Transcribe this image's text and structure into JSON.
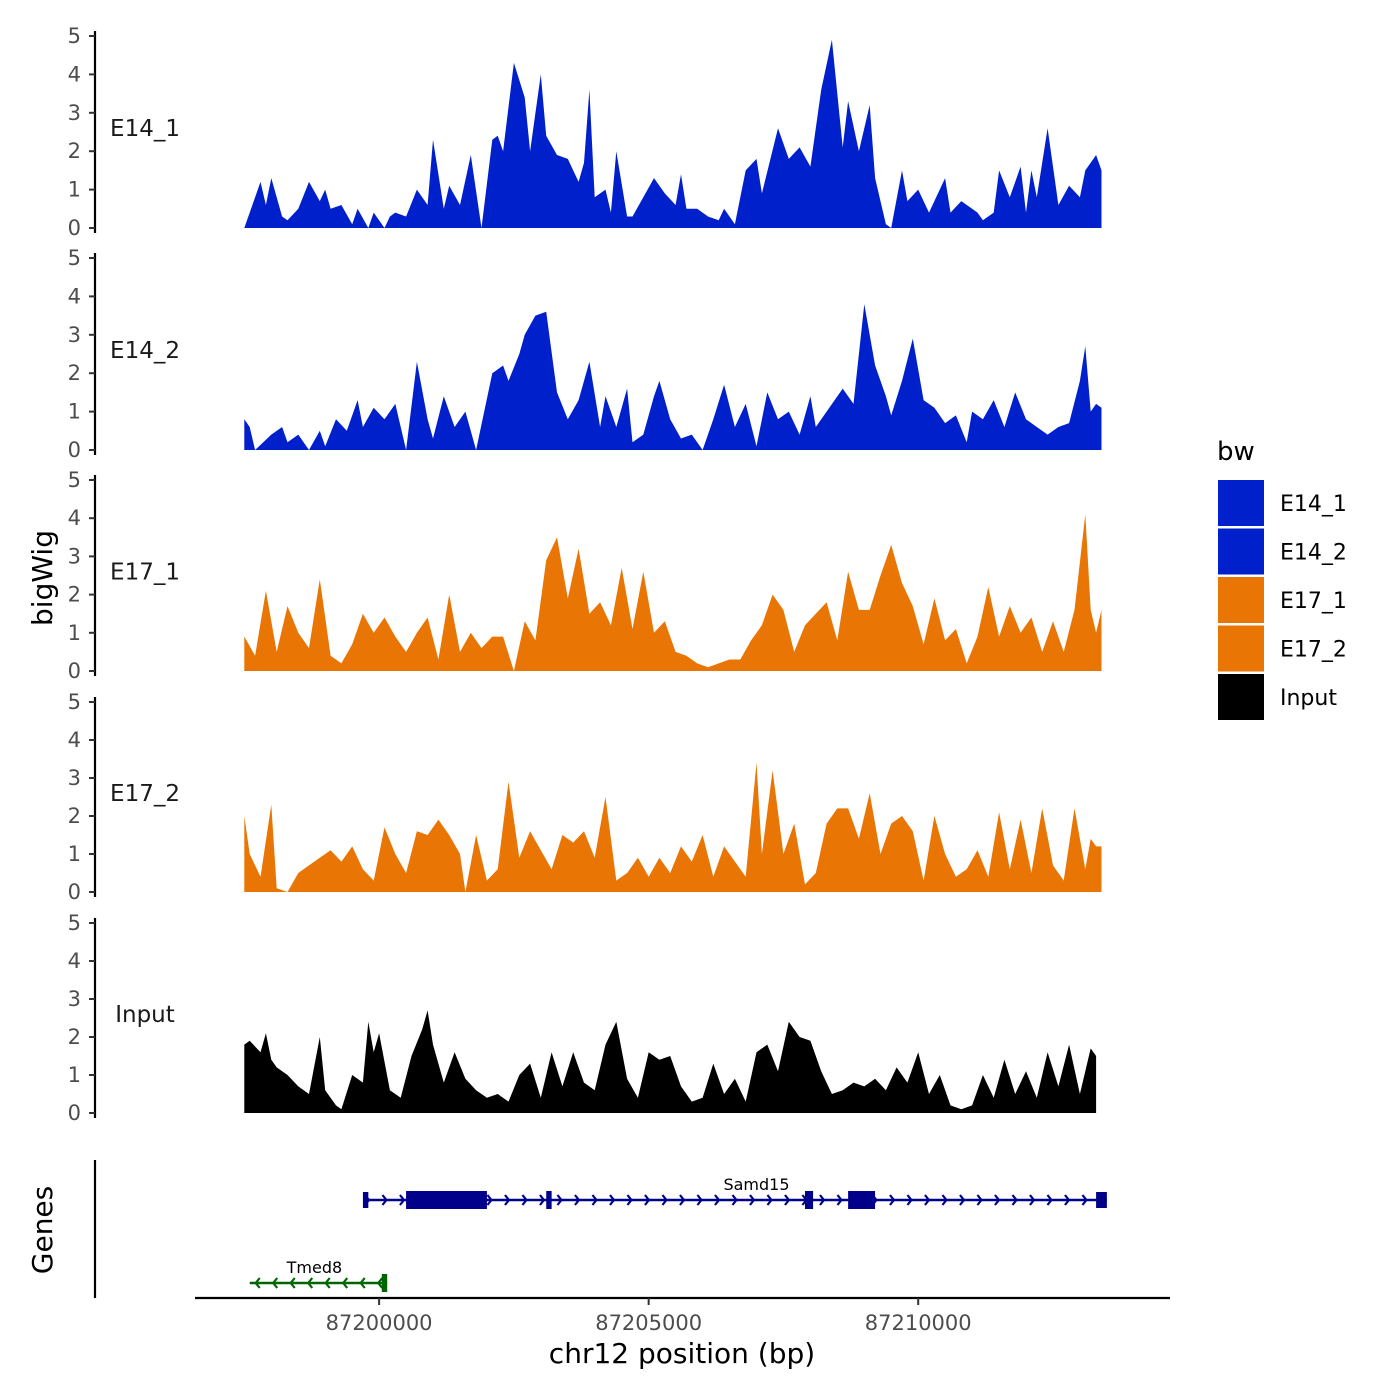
{
  "chart_data": {
    "type": "area",
    "y_axis_title": "bigWig",
    "genes_axis_title": "Genes",
    "xlabel": "chr12 position (bp)",
    "xlim": [
      87196900,
      87214300
    ],
    "x_ticks": [
      87200000,
      87205000,
      87210000
    ],
    "x_tick_labels": [
      "87200000",
      "87205000",
      "87210000"
    ],
    "ylim": [
      0,
      5
    ],
    "y_ticks": [
      0,
      1,
      2,
      3,
      4,
      5
    ],
    "y_tick_labels": [
      "0",
      "1",
      "2",
      "3",
      "4",
      "5"
    ],
    "legend": {
      "title": "bw",
      "entries": [
        {
          "label": "E14_1",
          "color": "#0020CC"
        },
        {
          "label": "E14_2",
          "color": "#0020CC"
        },
        {
          "label": "E17_1",
          "color": "#E87504"
        },
        {
          "label": "E17_2",
          "color": "#E87504"
        },
        {
          "label": "Input",
          "color": "#000000"
        }
      ]
    },
    "tracks": [
      {
        "name": "E14_1",
        "color": "#0020CC",
        "x": [
          87197500,
          87197800,
          87197900,
          87198000,
          87198200,
          87198300,
          87198500,
          87198700,
          87198900,
          87199000,
          87199100,
          87199300,
          87199500,
          87199600,
          87199800,
          87199900,
          87200000,
          87200100,
          87200200,
          87200300,
          87200500,
          87200700,
          87200900,
          87201000,
          87201200,
          87201300,
          87201500,
          87201700,
          87201900,
          87202100,
          87202200,
          87202300,
          87202500,
          87202700,
          87202800,
          87203000,
          87203100,
          87203300,
          87203500,
          87203700,
          87203800,
          87203900,
          87204000,
          87204200,
          87204300,
          87204400,
          87204600,
          87204700,
          87204900,
          87205100,
          87205300,
          87205500,
          87205600,
          87205700,
          87205900,
          87206100,
          87206300,
          87206400,
          87206600,
          87206800,
          87207000,
          87207100,
          87207400,
          87207600,
          87207800,
          87208000,
          87208200,
          87208400,
          87208600,
          87208700,
          87208900,
          87209100,
          87209200,
          87209400,
          87209500,
          87209700,
          87209800,
          87210000,
          87210200,
          87210500,
          87210600,
          87210800,
          87211000,
          87211100,
          87211200,
          87211400,
          87211500,
          87211700,
          87211900,
          87212000,
          87212100,
          87212200,
          87212400,
          87212600,
          87212800,
          87213000,
          87213100,
          87213200,
          87213300,
          87213400
        ],
        "y": [
          0,
          1.2,
          0.6,
          1.3,
          0.3,
          0.2,
          0.5,
          1.2,
          0.7,
          1.0,
          0.5,
          0.6,
          0.1,
          0.5,
          0.0,
          0.4,
          0.2,
          0.0,
          0.3,
          0.4,
          0.3,
          1.0,
          0.6,
          2.3,
          0.5,
          1.1,
          0.6,
          1.9,
          0.0,
          2.3,
          2.4,
          2.0,
          4.3,
          3.4,
          2.0,
          4.0,
          2.4,
          1.9,
          1.8,
          1.2,
          1.7,
          3.6,
          0.8,
          1.0,
          0.4,
          2.0,
          0.3,
          0.3,
          0.8,
          1.3,
          0.9,
          0.6,
          1.4,
          0.5,
          0.5,
          0.3,
          0.2,
          0.5,
          0.1,
          1.5,
          1.8,
          0.9,
          2.6,
          1.8,
          2.1,
          1.6,
          3.6,
          4.9,
          2.1,
          3.3,
          2.0,
          3.2,
          1.3,
          0.1,
          0.0,
          1.5,
          0.7,
          1.0,
          0.4,
          1.3,
          0.4,
          0.7,
          0.5,
          0.4,
          0.2,
          0.4,
          1.5,
          0.8,
          1.6,
          0.4,
          1.5,
          0.8,
          2.6,
          0.6,
          1.1,
          0.8,
          1.5,
          1.7,
          1.9,
          1.5
        ]
      },
      {
        "name": "E14_2",
        "color": "#0020CC",
        "x": [
          87197500,
          87197600,
          87197700,
          87198000,
          87198200,
          87198300,
          87198500,
          87198700,
          87198900,
          87199000,
          87199200,
          87199400,
          87199600,
          87199700,
          87199900,
          87200100,
          87200300,
          87200500,
          87200700,
          87200900,
          87201000,
          87201200,
          87201400,
          87201600,
          87201800,
          87202100,
          87202300,
          87202400,
          87202600,
          87202700,
          87202900,
          87203100,
          87203300,
          87203500,
          87203700,
          87203900,
          87204100,
          87204200,
          87204400,
          87204600,
          87204700,
          87204900,
          87205100,
          87205200,
          87205400,
          87205600,
          87205800,
          87206000,
          87206200,
          87206400,
          87206600,
          87206800,
          87207000,
          87207200,
          87207400,
          87207600,
          87207800,
          87208000,
          87208100,
          87208300,
          87208600,
          87208800,
          87209000,
          87209200,
          87209400,
          87209500,
          87209700,
          87209900,
          87210100,
          87210300,
          87210500,
          87210700,
          87210900,
          87211000,
          87211200,
          87211400,
          87211600,
          87211800,
          87212000,
          87212200,
          87212400,
          87212600,
          87212800,
          87213000,
          87213100,
          87213200,
          87213300,
          87213400
        ],
        "y": [
          0.8,
          0.6,
          0,
          0.4,
          0.6,
          0.2,
          0.4,
          0.0,
          0.5,
          0.1,
          0.8,
          0.5,
          1.3,
          0.6,
          1.1,
          0.8,
          1.2,
          0.0,
          2.3,
          0.8,
          0.3,
          1.4,
          0.6,
          1.0,
          0.0,
          2.0,
          2.2,
          1.8,
          2.5,
          3.0,
          3.5,
          3.6,
          1.5,
          0.8,
          1.3,
          2.3,
          0.6,
          1.4,
          0.6,
          1.6,
          0.2,
          0.4,
          1.4,
          1.8,
          0.8,
          0.3,
          0.4,
          0,
          0.8,
          1.7,
          0.6,
          1.2,
          0.1,
          1.5,
          0.8,
          1.0,
          0.4,
          1.4,
          0.6,
          1.0,
          1.6,
          1.2,
          3.8,
          2.2,
          1.4,
          0.9,
          1.8,
          2.9,
          1.3,
          1.1,
          0.7,
          0.9,
          0.2,
          1.0,
          0.8,
          1.3,
          0.6,
          1.5,
          0.8,
          0.6,
          0.4,
          0.6,
          0.7,
          1.8,
          2.7,
          1.0,
          1.2,
          1.1
        ]
      },
      {
        "name": "E17_1",
        "color": "#E87504",
        "x": [
          87197500,
          87197700,
          87197900,
          87198100,
          87198300,
          87198500,
          87198700,
          87198900,
          87199100,
          87199300,
          87199500,
          87199700,
          87199900,
          87200100,
          87200300,
          87200500,
          87200700,
          87200900,
          87201100,
          87201300,
          87201500,
          87201700,
          87201900,
          87202100,
          87202300,
          87202500,
          87202700,
          87202900,
          87203100,
          87203300,
          87203500,
          87203700,
          87203900,
          87204100,
          87204300,
          87204500,
          87204700,
          87204900,
          87205100,
          87205300,
          87205500,
          87205700,
          87205900,
          87206100,
          87206300,
          87206500,
          87206700,
          87206900,
          87207100,
          87207300,
          87207500,
          87207700,
          87207900,
          87208100,
          87208300,
          87208500,
          87208700,
          87208900,
          87209100,
          87209300,
          87209500,
          87209700,
          87209900,
          87210100,
          87210300,
          87210500,
          87210700,
          87210900,
          87211100,
          87211300,
          87211500,
          87211700,
          87211900,
          87212100,
          87212300,
          87212500,
          87212700,
          87212900,
          87213100,
          87213200,
          87213300,
          87213400
        ],
        "y": [
          0.9,
          0.4,
          2.1,
          0.5,
          1.7,
          1.0,
          0.6,
          2.4,
          0.4,
          0.2,
          0.7,
          1.5,
          1.0,
          1.4,
          0.9,
          0.5,
          1.0,
          1.4,
          0.3,
          2.0,
          0.5,
          1.0,
          0.6,
          0.9,
          0.9,
          0.0,
          1.3,
          0.8,
          2.9,
          3.5,
          1.9,
          3.2,
          1.5,
          1.8,
          1.2,
          2.7,
          1.1,
          2.6,
          1.0,
          1.3,
          0.5,
          0.4,
          0.2,
          0.1,
          0.2,
          0.3,
          0.3,
          0.8,
          1.2,
          2.0,
          1.6,
          0.5,
          1.2,
          1.5,
          1.8,
          0.8,
          2.6,
          1.6,
          1.6,
          2.5,
          3.3,
          2.3,
          1.7,
          0.7,
          1.9,
          0.8,
          1.1,
          0.2,
          0.9,
          2.2,
          0.9,
          1.7,
          1.0,
          1.4,
          0.5,
          1.3,
          0.5,
          1.6,
          4.1,
          1.6,
          1.0,
          1.6
        ]
      },
      {
        "name": "E17_2",
        "color": "#E87504",
        "x": [
          87197500,
          87197600,
          87197800,
          87198000,
          87198100,
          87198300,
          87198500,
          87198700,
          87198900,
          87199100,
          87199300,
          87199500,
          87199700,
          87199900,
          87200100,
          87200300,
          87200500,
          87200700,
          87200900,
          87201100,
          87201300,
          87201500,
          87201600,
          87201800,
          87202000,
          87202200,
          87202400,
          87202600,
          87202800,
          87203000,
          87203200,
          87203400,
          87203600,
          87203800,
          87204000,
          87204200,
          87204400,
          87204600,
          87204800,
          87205000,
          87205200,
          87205400,
          87205600,
          87205800,
          87206000,
          87206200,
          87206400,
          87206600,
          87206800,
          87207000,
          87207100,
          87207300,
          87207500,
          87207700,
          87207900,
          87208100,
          87208300,
          87208500,
          87208700,
          87208900,
          87209100,
          87209300,
          87209500,
          87209700,
          87209900,
          87210100,
          87210300,
          87210500,
          87210700,
          87210900,
          87211100,
          87211300,
          87211500,
          87211700,
          87211900,
          87212100,
          87212300,
          87212500,
          87212700,
          87212900,
          87213100,
          87213200,
          87213300,
          87213400
        ],
        "y": [
          2.0,
          1.0,
          0.4,
          2.3,
          0.1,
          0.0,
          0.5,
          0.7,
          0.9,
          1.1,
          0.8,
          1.2,
          0.6,
          0.3,
          1.7,
          1.0,
          0.5,
          1.6,
          1.5,
          1.9,
          1.5,
          1.0,
          0.0,
          1.5,
          0.3,
          0.6,
          2.9,
          0.9,
          1.6,
          1.1,
          0.6,
          1.5,
          1.3,
          1.6,
          0.9,
          2.5,
          0.3,
          0.5,
          0.9,
          0.4,
          0.9,
          0.5,
          1.2,
          0.8,
          1.5,
          0.4,
          1.2,
          0.8,
          0.4,
          3.4,
          1.0,
          3.2,
          1.0,
          1.8,
          0.2,
          0.5,
          1.8,
          2.2,
          2.2,
          1.4,
          2.6,
          1.0,
          1.8,
          2.0,
          1.6,
          0.3,
          2.0,
          1.0,
          0.4,
          0.6,
          1.1,
          0.4,
          2.1,
          0.6,
          1.9,
          0.5,
          2.2,
          0.7,
          0.3,
          2.2,
          0.6,
          1.4,
          1.2,
          1.2
        ]
      },
      {
        "name": "Input",
        "color": "#000000",
        "x": [
          87197500,
          87197600,
          87197800,
          87197900,
          87198000,
          87198100,
          87198300,
          87198500,
          87198700,
          87198900,
          87199000,
          87199200,
          87199300,
          87199500,
          87199700,
          87199800,
          87199900,
          87200000,
          87200200,
          87200400,
          87200600,
          87200800,
          87200900,
          87201000,
          87201200,
          87201400,
          87201600,
          87201800,
          87202000,
          87202200,
          87202400,
          87202600,
          87202800,
          87203000,
          87203200,
          87203400,
          87203600,
          87203800,
          87204000,
          87204200,
          87204400,
          87204600,
          87204800,
          87205000,
          87205200,
          87205400,
          87205600,
          87205800,
          87206000,
          87206200,
          87206400,
          87206600,
          87206800,
          87207000,
          87207200,
          87207400,
          87207600,
          87207800,
          87208000,
          87208200,
          87208400,
          87208600,
          87208800,
          87209000,
          87209200,
          87209400,
          87209600,
          87209800,
          87210000,
          87210200,
          87210400,
          87210600,
          87210800,
          87211000,
          87211200,
          87211400,
          87211600,
          87211800,
          87212000,
          87212200,
          87212400,
          87212600,
          87212800,
          87213000,
          87213200,
          87213300
        ],
        "y": [
          1.8,
          1.9,
          1.6,
          2.1,
          1.4,
          1.2,
          1.0,
          0.7,
          0.5,
          2.0,
          0.6,
          0.2,
          0.1,
          1.0,
          0.8,
          2.4,
          1.6,
          2.1,
          0.6,
          0.4,
          1.5,
          2.2,
          2.7,
          1.8,
          0.8,
          1.6,
          0.9,
          0.6,
          0.4,
          0.5,
          0.3,
          1.0,
          1.3,
          0.4,
          1.6,
          0.7,
          1.6,
          0.8,
          0.6,
          1.8,
          2.4,
          0.9,
          0.4,
          1.6,
          1.4,
          1.5,
          0.7,
          0.3,
          0.4,
          1.3,
          0.5,
          0.9,
          0.3,
          1.6,
          1.8,
          1.1,
          2.4,
          2.0,
          1.9,
          1.1,
          0.5,
          0.6,
          0.8,
          0.7,
          0.9,
          0.6,
          1.2,
          0.8,
          1.6,
          0.5,
          1.0,
          0.2,
          0.1,
          0.2,
          1.0,
          0.4,
          1.4,
          0.5,
          1.1,
          0.4,
          1.6,
          0.7,
          1.8,
          0.5,
          1.7,
          1.5
        ]
      }
    ],
    "genes": [
      {
        "name": "Samd15",
        "color": "#00008B",
        "strand": "+",
        "start": 87199700,
        "end": 87213500,
        "exons": [
          [
            87199700,
            87199800,
            "utr"
          ],
          [
            87200500,
            87202000,
            "cds"
          ],
          [
            87203100,
            87203200,
            "cds"
          ],
          [
            87207900,
            87208050,
            "cds"
          ],
          [
            87208700,
            87209200,
            "cds"
          ],
          [
            87213300,
            87213500,
            "utr"
          ]
        ]
      },
      {
        "name": "Tmed8",
        "color": "#006400",
        "strand": "-",
        "start": 87197600,
        "end": 87200150,
        "exons": [
          [
            87200050,
            87200150,
            "cds"
          ]
        ]
      }
    ]
  }
}
